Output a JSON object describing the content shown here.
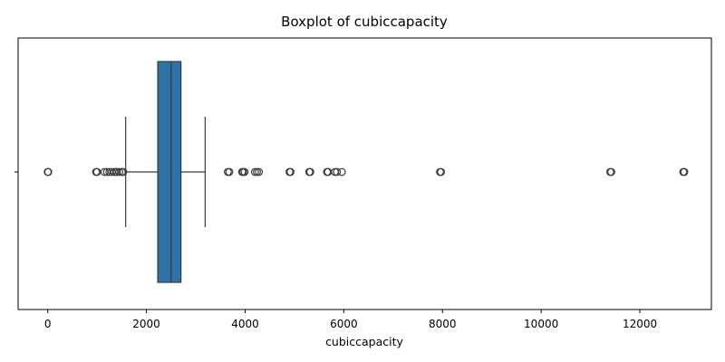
{
  "chart_data": {
    "type": "boxplot",
    "title": "Boxplot of cubiccapacity",
    "xlabel": "cubiccapacity",
    "ylabel": "",
    "xlim": [
      -600,
      13450
    ],
    "xticks": [
      0,
      2000,
      4000,
      6000,
      8000,
      10000,
      12000
    ],
    "grid": false,
    "box": {
      "q1": 2230,
      "median": 2500,
      "q3": 2700,
      "whisker_low": 1580,
      "whisker_high": 3190,
      "fill_color": "#2e73a8",
      "edge_color": "#3a3a3a"
    },
    "outliers": [
      0,
      10,
      980,
      1000,
      1150,
      1200,
      1250,
      1300,
      1350,
      1390,
      1400,
      1450,
      1500,
      1530,
      3650,
      3680,
      3940,
      3960,
      3990,
      4200,
      4240,
      4280,
      4900,
      4920,
      5300,
      5320,
      5660,
      5680,
      5820,
      5860,
      5960,
      7950,
      7970,
      11400,
      11420,
      12880,
      12900
    ]
  }
}
